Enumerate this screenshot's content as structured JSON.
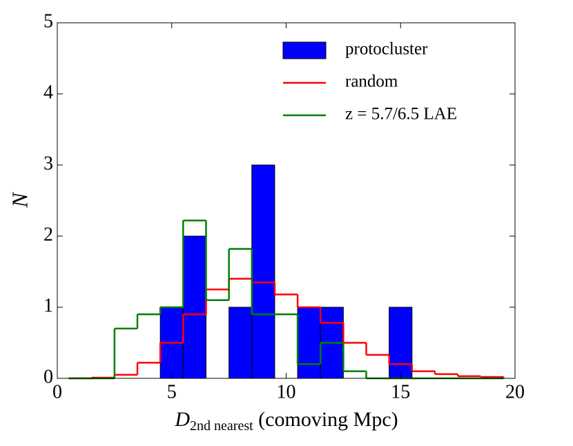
{
  "chart_data": {
    "type": "histogram",
    "xlabel": {
      "main": "D",
      "sub": "2nd nearest",
      "rest": " (comoving Mpc)"
    },
    "ylabel": "N",
    "bins": [
      0.5,
      1.5,
      2.5,
      3.5,
      4.5,
      5.5,
      6.5,
      7.5,
      8.5,
      9.5,
      10.5,
      11.5,
      12.5,
      13.5,
      14.5,
      15.5,
      16.5,
      17.5,
      18.5,
      19.5
    ],
    "series": [
      {
        "name": "protocluster",
        "style": "bar",
        "color": "#0000ff",
        "values": [
          0,
          0,
          0,
          0,
          1,
          2,
          0,
          1,
          3,
          0,
          1,
          1,
          0,
          0,
          1,
          0,
          0,
          0,
          0
        ]
      },
      {
        "name": "random",
        "style": "step",
        "color": "#ff0000",
        "values": [
          0,
          0.01,
          0.05,
          0.22,
          0.5,
          0.9,
          1.25,
          1.4,
          1.35,
          1.18,
          1.0,
          0.78,
          0.5,
          0.33,
          0.2,
          0.1,
          0.06,
          0.03,
          0.02
        ]
      },
      {
        "name": "z = 5.7/6.5 LAE",
        "style": "step",
        "color": "#008000",
        "values": [
          0,
          0,
          0.7,
          0.9,
          1.0,
          2.22,
          1.1,
          1.82,
          0.9,
          0.9,
          0.2,
          0.5,
          0.1,
          0,
          0,
          0,
          0,
          0,
          0
        ]
      }
    ],
    "xlim": [
      0,
      20
    ],
    "ylim": [
      0,
      5
    ],
    "xticks": [
      0,
      5,
      10,
      15,
      20
    ],
    "yticks": [
      0,
      1,
      2,
      3,
      4,
      5
    ],
    "legend": "upper right"
  }
}
